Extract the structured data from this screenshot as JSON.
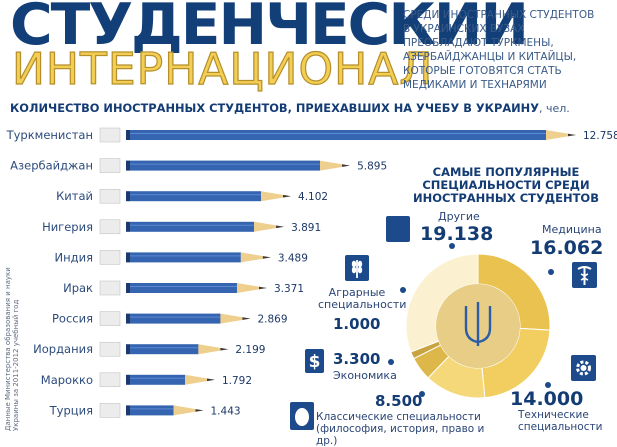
{
  "header": {
    "title_line1": "СТУДЕНЧЕСКИЙ",
    "title_line2": "ИНТЕРНАЦИОНАЛ",
    "lead": "Среди иностранных студентов в украинских вузах преобладают туркмены, азербайджанцы и китайцы, которые готовятся стать медиками и технарями"
  },
  "source_note": "Данные Министерства образования и науки Украины за 2011-2012 учебный год",
  "chart_data": [
    {
      "type": "bar",
      "title": "КОЛИЧЕСТВО ИНОСТРАННЫХ СТУДЕНТОВ, ПРИЕХАВШИХ НА УЧЕБУ В УКРАИНУ",
      "unit": ", чел.",
      "categories": [
        "Туркменистан",
        "Азербайджан",
        "Китай",
        "Нигерия",
        "Индия",
        "Ирак",
        "Россия",
        "Иордания",
        "Марокко",
        "Турция"
      ],
      "values": [
        12758,
        5895,
        4102,
        3891,
        3489,
        3371,
        2869,
        2199,
        1792,
        1443
      ],
      "value_labels": [
        "12.758",
        "5.895",
        "4.102",
        "3.891",
        "3.489",
        "3.371",
        "2.869",
        "2.199",
        "1.792",
        "1.443"
      ],
      "xlim": [
        0,
        12758
      ]
    },
    {
      "type": "pie",
      "title": "САМЫЕ ПОПУЛЯРНЫЕ СПЕЦИАЛЬНОСТИ СРЕДИ ИНОСТРАННЫХ СТУДЕНТОВ",
      "slices": [
        {
          "label": "Медицина",
          "value": 16062,
          "value_label": "16.062"
        },
        {
          "label": "Технические специальности",
          "value": 14000,
          "value_label": "14.000"
        },
        {
          "label": "Классические специальности (философия, история, право и др.)",
          "value": 8500,
          "value_label": "8.500"
        },
        {
          "label": "Экономика",
          "value": 3300,
          "value_label": "3.300"
        },
        {
          "label": "Аграрные специальности",
          "value": 1000,
          "value_label": "1.000"
        },
        {
          "label": "Другие",
          "value": 19138,
          "value_label": "19.138"
        }
      ]
    }
  ],
  "colors": {
    "navy": "#143c74",
    "pencil_blue": "#3565b0",
    "wood": "#efcf8e",
    "ring_gold": "#f0c954",
    "ring_dark": "#c9a33f",
    "ring_light": "#f7df9a",
    "hole": "#e7cd86"
  },
  "icons": {
    "medicine": "caduceus-icon",
    "technical": "gear-icon",
    "classic": "egg-icon",
    "economy": "dollar-icon",
    "agrarian": "wheat-icon",
    "other": "square-icon",
    "center": "trident-icon"
  }
}
